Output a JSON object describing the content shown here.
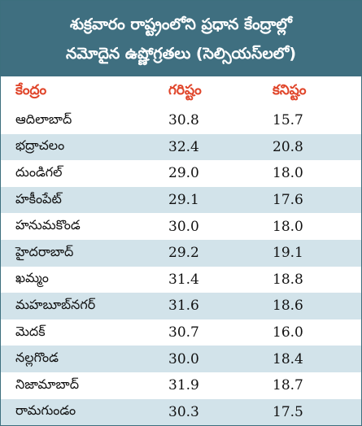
{
  "title": {
    "line1": "శుక్రవారం రాష్ట్రంలోని ప్రధాన కేంద్రాల్లో",
    "line2": "నమోదైన ఉష్ణోగ్రతలు (సెల్సియస్‌లలో)"
  },
  "columns": {
    "center": "కేంద్రం",
    "max": "గరిష్టం",
    "min": "కనిష్టం"
  },
  "rows": [
    {
      "center": "ఆదిలాబాద్",
      "max": "30.8",
      "min": "15.7"
    },
    {
      "center": "భద్రాచలం",
      "max": "32.4",
      "min": "20.8"
    },
    {
      "center": "దుండిగల్",
      "max": "29.0",
      "min": "18.0"
    },
    {
      "center": "హకీంపేట్",
      "max": "29.1",
      "min": "17.6"
    },
    {
      "center": "హనుమకొండ",
      "max": "30.0",
      "min": "18.0"
    },
    {
      "center": "హైదరాబాద్",
      "max": "29.2",
      "min": "19.1"
    },
    {
      "center": "ఖమ్మం",
      "max": "31.4",
      "min": "18.8"
    },
    {
      "center": "మహబూబ్‌నగర్",
      "max": "31.6",
      "min": "18.6"
    },
    {
      "center": "మెదక్",
      "max": "30.7",
      "min": "16.0"
    },
    {
      "center": "నల్లగొండ",
      "max": "30.0",
      "min": "18.4"
    },
    {
      "center": "నిజామాబాద్",
      "max": "31.9",
      "min": "18.7"
    },
    {
      "center": "రామగుండం",
      "max": "30.3",
      "min": "17.5"
    }
  ],
  "colors": {
    "header_bg": "#3f6f80",
    "column_header_text": "#e0452a",
    "stripe": "#d2e3ea"
  }
}
